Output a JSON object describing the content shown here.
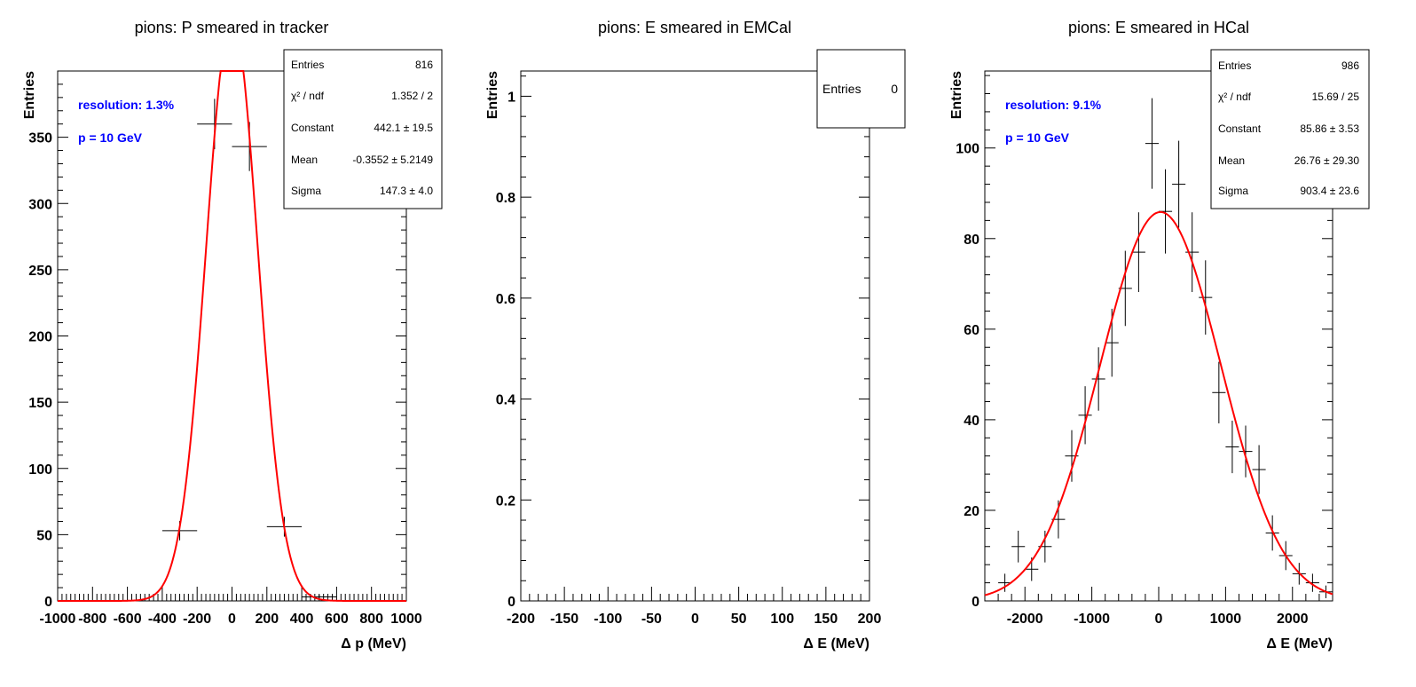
{
  "chart_data": [
    {
      "type": "histogram",
      "title": "pions: P smeared in tracker",
      "xlabel": "Δ p (MeV)",
      "ylabel": "Entries",
      "xlim": [
        -1000,
        1000
      ],
      "ylim": [
        0,
        400
      ],
      "xticks": [
        -1000,
        -800,
        -600,
        -400,
        -200,
        0,
        200,
        400,
        600,
        800,
        1000
      ],
      "xtick_labels": [
        "-1000",
        "-800",
        "-600",
        "-400",
        "-200",
        "0",
        "200",
        "400",
        "600",
        "800",
        "1000"
      ],
      "yticks": [
        0,
        50,
        100,
        150,
        200,
        250,
        300,
        350
      ],
      "ytick_labels": [
        "0",
        "50",
        "100",
        "150",
        "200",
        "250",
        "300",
        "350"
      ],
      "bin_width": 200,
      "bins": [
        {
          "x": -300,
          "y": 53,
          "err": 7.3
        },
        {
          "x": -100,
          "y": 360,
          "err": 19
        },
        {
          "x": 100,
          "y": 343,
          "err": 18.5
        },
        {
          "x": 300,
          "y": 56,
          "err": 7.5
        },
        {
          "x": 500,
          "y": 3,
          "err": 1.7
        }
      ],
      "fit": {
        "function": "gaus",
        "constant": 442.1,
        "mean": -0.3552,
        "sigma": 147.3,
        "color": "#ff0000"
      },
      "annotations": [
        "resolution: 1.3%",
        "p = 10 GeV"
      ],
      "stats": [
        {
          "label": "Entries",
          "value": "816"
        },
        {
          "label": "χ² / ndf",
          "value": "1.352 / 2"
        },
        {
          "label": "Constant",
          "value": "442.1 ± 19.5"
        },
        {
          "label": "Mean",
          "value": "-0.3552 ± 5.2149"
        },
        {
          "label": "Sigma",
          "value": "147.3 ± 4.0"
        }
      ]
    },
    {
      "type": "histogram",
      "title": "pions: E smeared in EMCal",
      "xlabel": "Δ E (MeV)",
      "ylabel": "Entries",
      "xlim": [
        -200,
        200
      ],
      "ylim": [
        0,
        1.05
      ],
      "xticks": [
        -200,
        -150,
        -100,
        -50,
        0,
        50,
        100,
        150,
        200
      ],
      "xtick_labels": [
        "-200",
        "-150",
        "-100",
        "-50",
        "0",
        "50",
        "100",
        "150",
        "200"
      ],
      "yticks": [
        0,
        0.2,
        0.4,
        0.6,
        0.8,
        1
      ],
      "ytick_labels": [
        "0",
        "0.2",
        "0.4",
        "0.6",
        "0.8",
        "1"
      ],
      "bins": [],
      "annotations": [],
      "stats": [
        {
          "label": "Entries",
          "value": "0"
        }
      ]
    },
    {
      "type": "histogram",
      "title": "pions: E smeared in HCal",
      "xlabel": "Δ E (MeV)",
      "ylabel": "Entries",
      "xlim": [
        -2600,
        2600
      ],
      "ylim": [
        0,
        117
      ],
      "xticks": [
        -2000,
        -1000,
        0,
        1000,
        2000
      ],
      "xtick_labels": [
        "-2000",
        "-1000",
        "0",
        "1000",
        "2000"
      ],
      "yticks": [
        0,
        20,
        40,
        60,
        80,
        100
      ],
      "ytick_labels": [
        "0",
        "20",
        "40",
        "60",
        "80",
        "100"
      ],
      "bin_width": 200,
      "bins": [
        {
          "x": -2300,
          "y": 4,
          "err": 2
        },
        {
          "x": -2100,
          "y": 12,
          "err": 3.5
        },
        {
          "x": -1900,
          "y": 7,
          "err": 2.6
        },
        {
          "x": -1700,
          "y": 12,
          "err": 3.5
        },
        {
          "x": -1500,
          "y": 18,
          "err": 4.2
        },
        {
          "x": -1300,
          "y": 32,
          "err": 5.7
        },
        {
          "x": -1100,
          "y": 41,
          "err": 6.4
        },
        {
          "x": -900,
          "y": 49,
          "err": 7
        },
        {
          "x": -700,
          "y": 57,
          "err": 7.5
        },
        {
          "x": -500,
          "y": 69,
          "err": 8.3
        },
        {
          "x": -300,
          "y": 77,
          "err": 8.8
        },
        {
          "x": -100,
          "y": 101,
          "err": 10
        },
        {
          "x": 100,
          "y": 86,
          "err": 9.3
        },
        {
          "x": 300,
          "y": 92,
          "err": 9.6
        },
        {
          "x": 500,
          "y": 77,
          "err": 8.8
        },
        {
          "x": 700,
          "y": 67,
          "err": 8.2
        },
        {
          "x": 900,
          "y": 46,
          "err": 6.8
        },
        {
          "x": 1100,
          "y": 34,
          "err": 5.8
        },
        {
          "x": 1300,
          "y": 33,
          "err": 5.7
        },
        {
          "x": 1500,
          "y": 29,
          "err": 5.4
        },
        {
          "x": 1700,
          "y": 15,
          "err": 3.9
        },
        {
          "x": 1900,
          "y": 10,
          "err": 3.2
        },
        {
          "x": 2100,
          "y": 6,
          "err": 2.4
        },
        {
          "x": 2300,
          "y": 4,
          "err": 2
        },
        {
          "x": 2500,
          "y": 2,
          "err": 1.4
        }
      ],
      "fit": {
        "function": "gaus",
        "constant": 85.86,
        "mean": 26.76,
        "sigma": 903.4,
        "color": "#ff0000"
      },
      "annotations": [
        "resolution: 9.1%",
        "p = 10 GeV"
      ],
      "stats": [
        {
          "label": "Entries",
          "value": "986"
        },
        {
          "label": "χ² / ndf",
          "value": "15.69 / 25"
        },
        {
          "label": "Constant",
          "value": "85.86 ± 3.53"
        },
        {
          "label": "Mean",
          "value": "26.76 ± 29.30"
        },
        {
          "label": "Sigma",
          "value": "903.4 ± 23.6"
        }
      ]
    }
  ]
}
